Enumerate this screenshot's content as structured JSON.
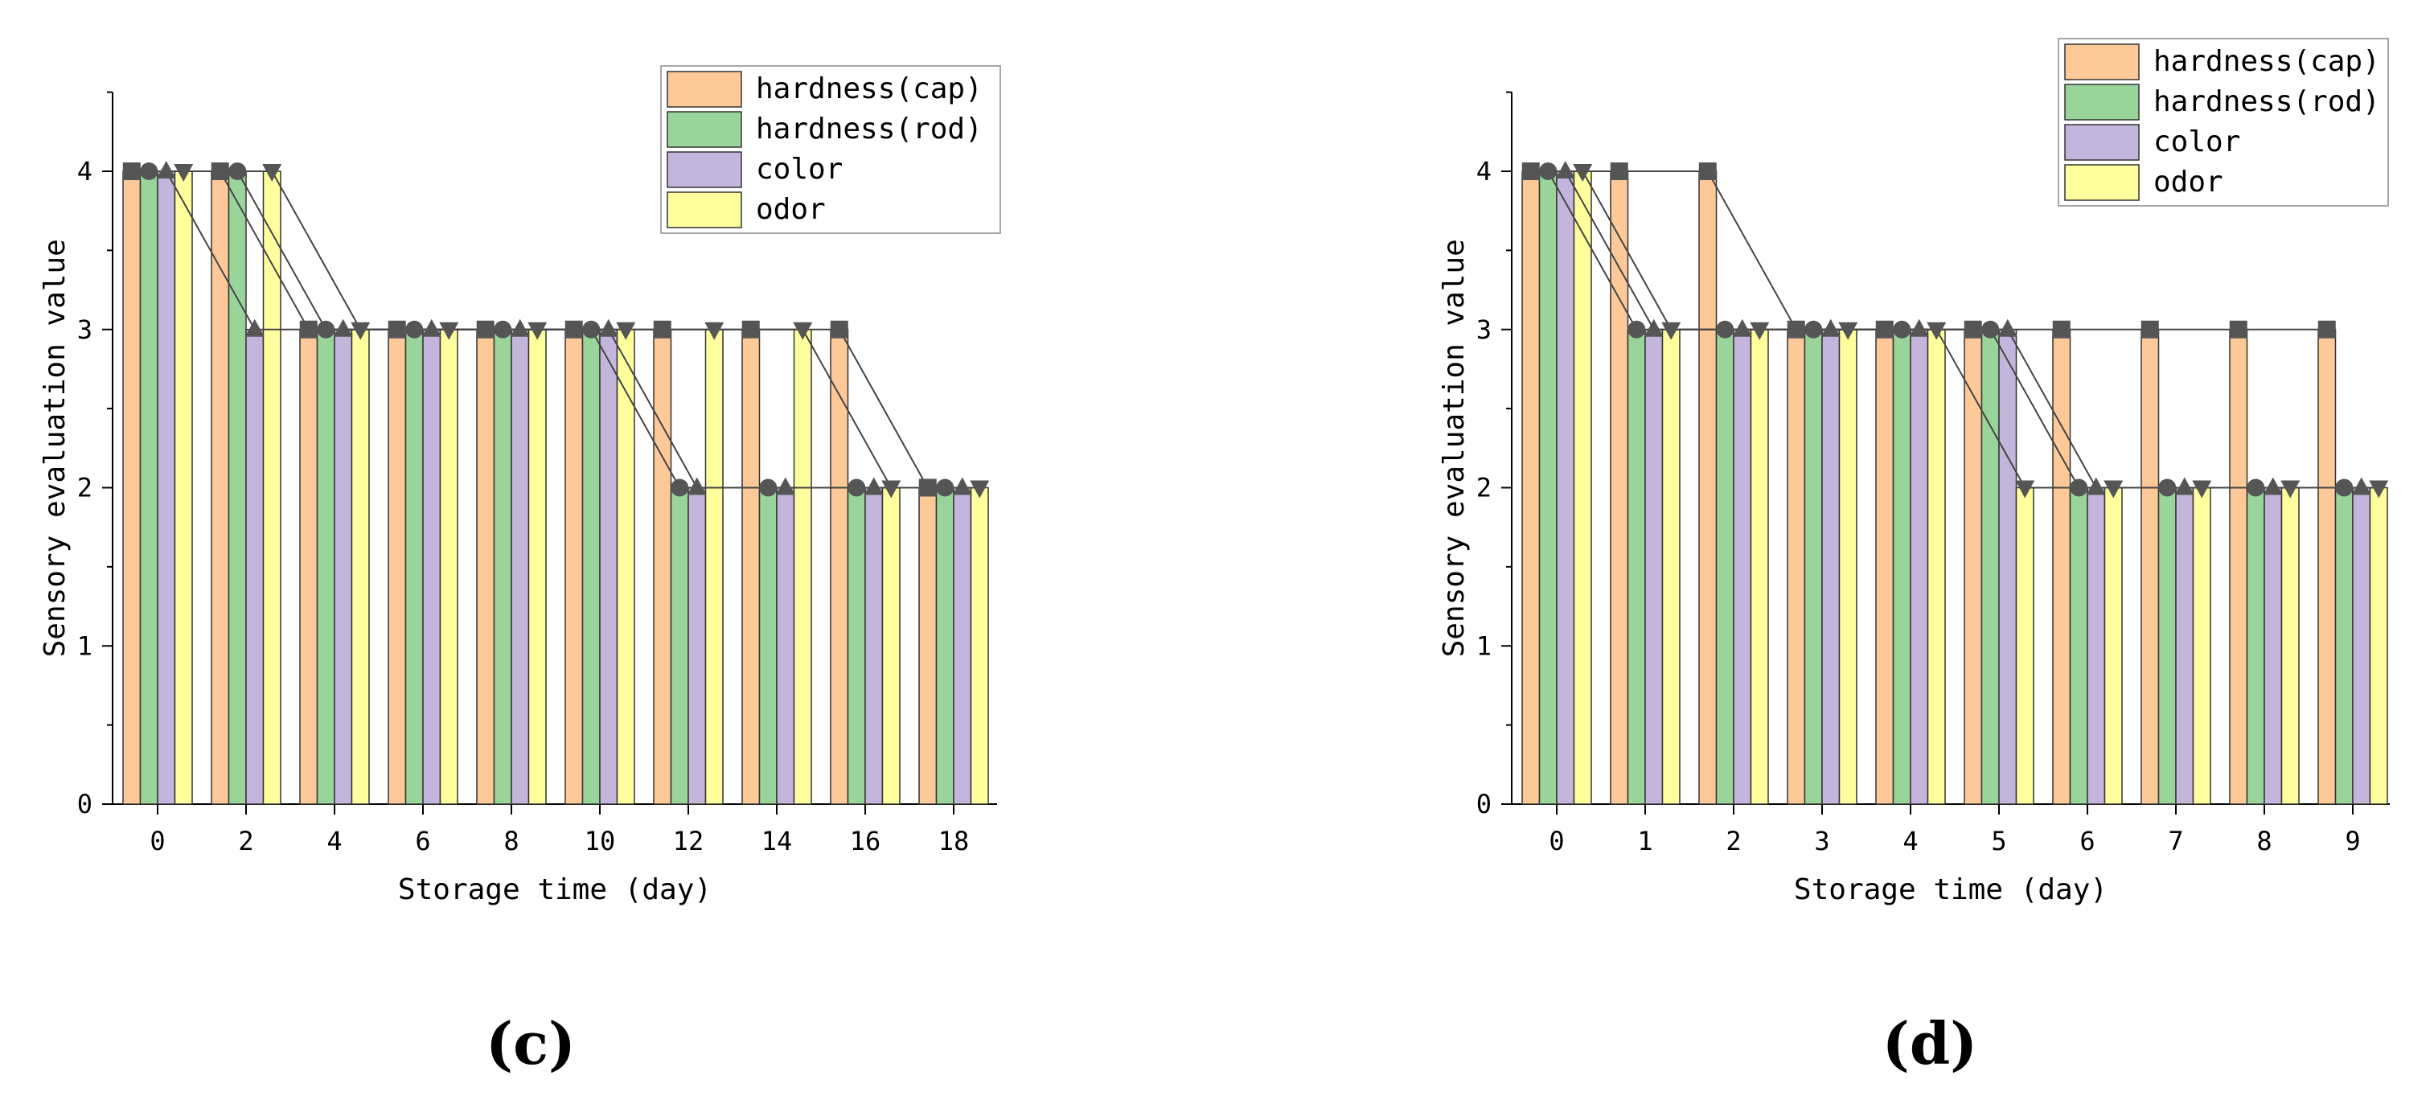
{
  "colors": {
    "cap": "#FDC998",
    "rod": "#99D59A",
    "color": "#C4B5DC",
    "odor": "#FFFF9E",
    "marker": "#555555"
  },
  "panel_labels": {
    "c": "(c)",
    "d": "(d)"
  },
  "chart_data": [
    {
      "type": "bar",
      "title": "",
      "xlabel": "Storage time (day)",
      "ylabel": "Sensory evaluation value",
      "ylim": [
        0,
        4.5
      ],
      "yticks": [
        0,
        1,
        2,
        3,
        4
      ],
      "grid": false,
      "legend_position": "top-right",
      "categories": [
        "0",
        "2",
        "4",
        "6",
        "8",
        "10",
        "12",
        "14",
        "16",
        "18"
      ],
      "series": [
        {
          "name": "hardness(cap)",
          "key": "cap",
          "marker": "square",
          "values": [
            4,
            4,
            3,
            3,
            3,
            3,
            3,
            3,
            3,
            2
          ]
        },
        {
          "name": "hardness(rod)",
          "key": "rod",
          "marker": "circle",
          "values": [
            4,
            4,
            3,
            3,
            3,
            3,
            2,
            2,
            2,
            2
          ]
        },
        {
          "name": "color",
          "key": "color",
          "marker": "triangle-up",
          "values": [
            4,
            3,
            3,
            3,
            3,
            3,
            2,
            2,
            2,
            2
          ]
        },
        {
          "name": "odor",
          "key": "odor",
          "marker": "triangle-down",
          "values": [
            4,
            4,
            3,
            3,
            3,
            3,
            3,
            3,
            2,
            2
          ]
        }
      ]
    },
    {
      "type": "bar",
      "title": "",
      "xlabel": "Storage time (day)",
      "ylabel": "Sensory evaluation value",
      "ylim": [
        0,
        4.5
      ],
      "yticks": [
        0,
        1,
        2,
        3,
        4
      ],
      "grid": false,
      "legend_position": "top-right",
      "categories": [
        "0",
        "1",
        "2",
        "3",
        "4",
        "5",
        "6",
        "7",
        "8",
        "9"
      ],
      "series": [
        {
          "name": "hardness(cap)",
          "key": "cap",
          "marker": "square",
          "values": [
            4,
            4,
            4,
            3,
            3,
            3,
            3,
            3,
            3,
            3
          ]
        },
        {
          "name": "hardness(rod)",
          "key": "rod",
          "marker": "circle",
          "values": [
            4,
            3,
            3,
            3,
            3,
            3,
            2,
            2,
            2,
            2
          ]
        },
        {
          "name": "color",
          "key": "color",
          "marker": "triangle-up",
          "values": [
            4,
            3,
            3,
            3,
            3,
            3,
            2,
            2,
            2,
            2
          ]
        },
        {
          "name": "odor",
          "key": "odor",
          "marker": "triangle-down",
          "values": [
            4,
            3,
            3,
            3,
            3,
            2,
            2,
            2,
            2,
            2
          ]
        }
      ]
    }
  ]
}
